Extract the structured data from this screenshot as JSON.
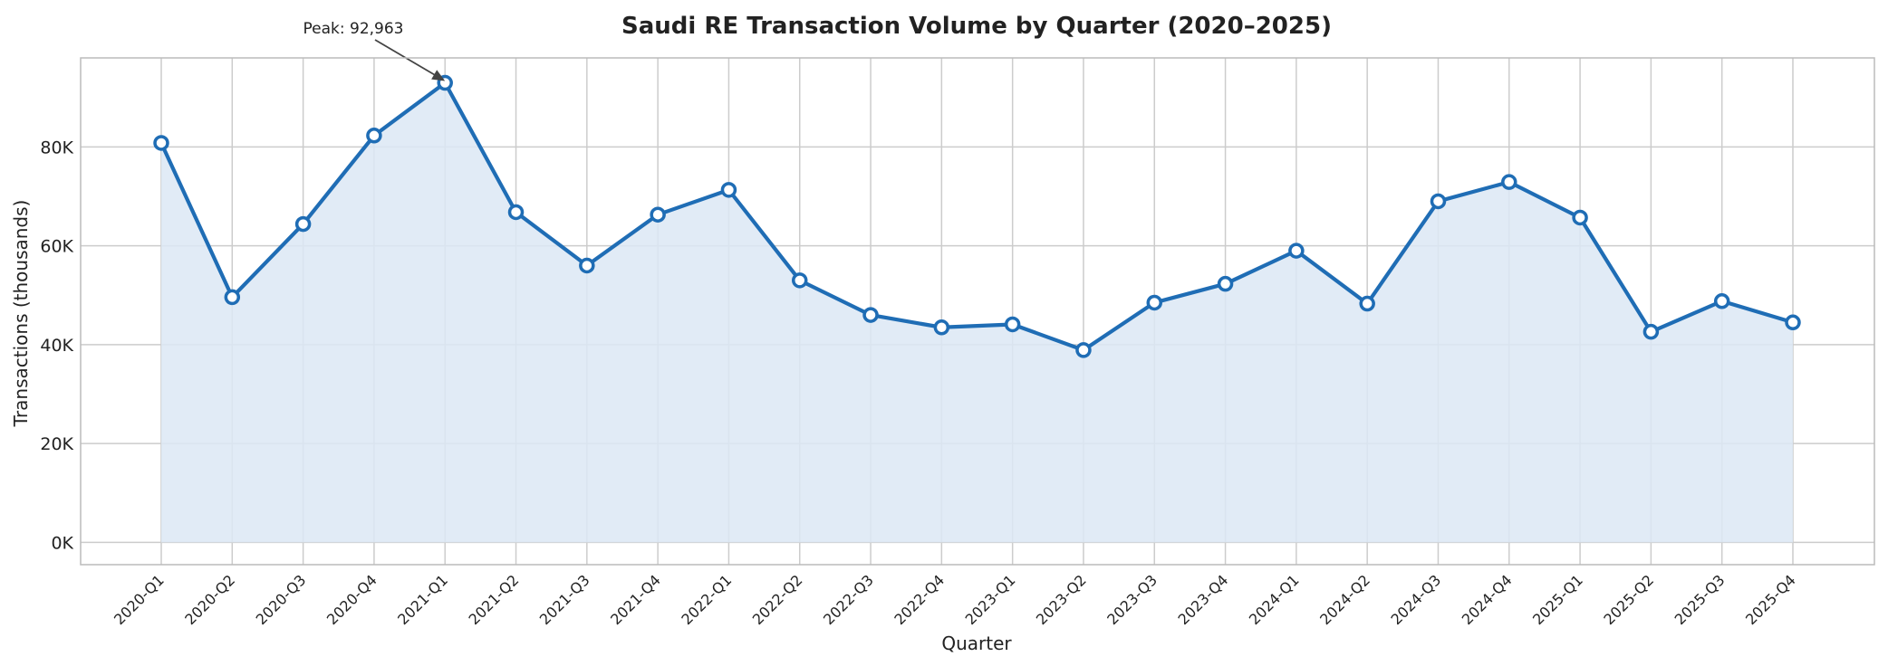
{
  "chart_data": {
    "type": "line",
    "title": "Saudi RE Transaction Volume by Quarter (2020–2025)",
    "xlabel": "Quarter",
    "ylabel": "Transactions (thousands)",
    "categories": [
      "2020-Q1",
      "2020-Q2",
      "2020-Q3",
      "2020-Q4",
      "2021-Q1",
      "2021-Q2",
      "2021-Q3",
      "2021-Q4",
      "2022-Q1",
      "2022-Q2",
      "2022-Q3",
      "2022-Q4",
      "2023-Q1",
      "2023-Q2",
      "2023-Q3",
      "2023-Q4",
      "2024-Q1",
      "2024-Q2",
      "2024-Q3",
      "2024-Q4",
      "2025-Q1",
      "2025-Q2",
      "2025-Q3",
      "2025-Q4"
    ],
    "series": [
      {
        "values": [
          80800,
          49600,
          64400,
          82300,
          92963,
          66800,
          56000,
          66300,
          71300,
          53000,
          46000,
          43500,
          44100,
          38900,
          48500,
          52300,
          59000,
          48300,
          69000,
          72900,
          65700,
          42600,
          48800,
          44500
        ]
      }
    ],
    "ylim": [
      -4500,
      98000
    ],
    "yticks": [
      0,
      20000,
      40000,
      60000,
      80000
    ],
    "ytick_labels": [
      "0K",
      "20K",
      "40K",
      "60K",
      "80K"
    ],
    "grid": true,
    "fill_under_line": true,
    "annotation": {
      "text": "Peak: 92,963",
      "category": "2021-Q1",
      "value": 92963
    },
    "colors": {
      "line": "#1f6db5",
      "fill": "#dce8f4",
      "grid": "#cccccc",
      "marker_face": "#ffffff"
    }
  }
}
